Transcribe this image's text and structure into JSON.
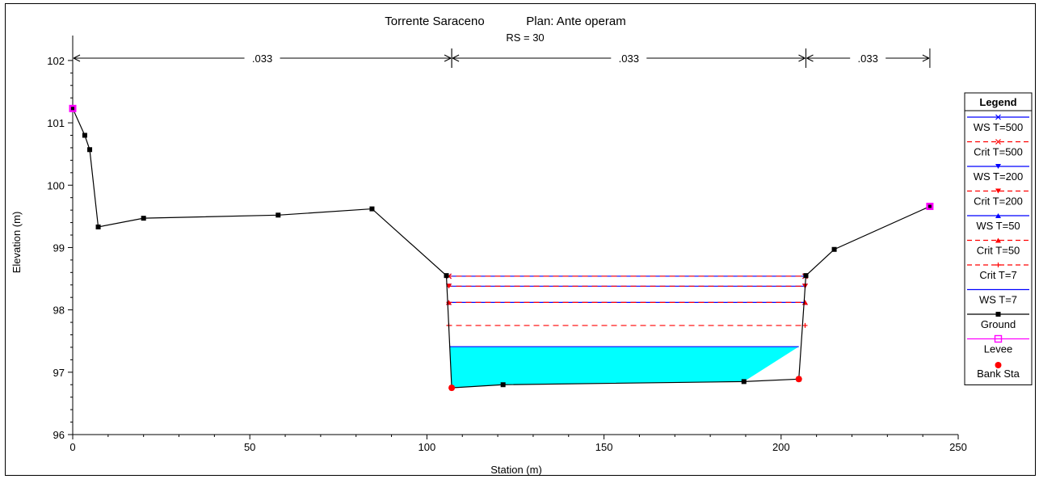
{
  "chart_data": {
    "type": "line",
    "title": "Torrente Saraceno",
    "plan": "Plan: Ante operam",
    "subtitle": "RS = 30",
    "xlabel": "Station (m)",
    "ylabel": "Elevation (m)",
    "xlim": [
      0,
      250
    ],
    "ylim": [
      96,
      102.4
    ],
    "x_ticks": [
      "0",
      "50",
      "100",
      "150",
      "200",
      "250"
    ],
    "x_tick_values": [
      0,
      50,
      100,
      150,
      200,
      250
    ],
    "y_ticks": [
      "96",
      "97",
      "98",
      "99",
      "100",
      "101",
      "102"
    ],
    "y_tick_values": [
      96,
      97,
      98,
      99,
      100,
      101,
      102
    ],
    "mannings": [
      {
        "label": ".033",
        "from": 0,
        "to": 107
      },
      {
        "label": ".033",
        "from": 107,
        "to": 207
      },
      {
        "label": ".033",
        "from": 207,
        "to": 242
      }
    ],
    "ground": {
      "x": [
        0,
        3.4,
        4.8,
        7.2,
        20,
        58,
        84.5,
        105.5,
        107,
        121.5,
        189.5,
        205,
        207,
        215,
        242
      ],
      "y": [
        101.23,
        100.8,
        100.57,
        99.33,
        99.47,
        99.52,
        99.62,
        98.55,
        96.75,
        96.8,
        96.85,
        96.89,
        98.55,
        98.97,
        99.66
      ]
    },
    "levees": [
      {
        "x": 0,
        "y": 101.23
      },
      {
        "x": 242,
        "y": 99.66
      }
    ],
    "bank_stations": [
      {
        "x": 107,
        "y": 96.75
      },
      {
        "x": 205,
        "y": 96.89
      }
    ],
    "water_surfaces": [
      {
        "name": "WS T=500",
        "elevation": 98.54,
        "left": 105.5,
        "right": 207,
        "color": "#0000ff",
        "dashed": false,
        "marker": "x"
      },
      {
        "name": "Crit T=500",
        "elevation": 98.54,
        "left": 105.5,
        "right": 207,
        "color": "#ff0000",
        "dashed": true,
        "marker": "x"
      },
      {
        "name": "WS T=200",
        "elevation": 98.38,
        "left": 105.5,
        "right": 207,
        "color": "#0000ff",
        "dashed": false,
        "marker": "tri-down"
      },
      {
        "name": "Crit T=200",
        "elevation": 98.38,
        "left": 105.5,
        "right": 207,
        "color": "#ff0000",
        "dashed": true,
        "marker": "tri-down"
      },
      {
        "name": "WS T=50",
        "elevation": 98.12,
        "left": 105.5,
        "right": 207,
        "color": "#0000ff",
        "dashed": false,
        "marker": "tri-up"
      },
      {
        "name": "Crit T=50",
        "elevation": 98.12,
        "left": 105.5,
        "right": 207,
        "color": "#ff0000",
        "dashed": true,
        "marker": "tri-up"
      },
      {
        "name": "Crit T=7",
        "elevation": 97.75,
        "left": 105.5,
        "right": 207,
        "color": "#ff0000",
        "dashed": true,
        "marker": "plus"
      },
      {
        "name": "WS T=7",
        "elevation": 97.41,
        "left": 106.5,
        "right": 205,
        "color": "#0000ff",
        "dashed": false,
        "marker": "none"
      }
    ],
    "fill_color": "#00ffff",
    "legend": {
      "title": "Legend",
      "placement": "right",
      "entries": [
        {
          "label": "WS T=500",
          "color": "#0000ff",
          "dashed": false,
          "marker": "x"
        },
        {
          "label": "Crit T=500",
          "color": "#ff0000",
          "dashed": true,
          "marker": "x"
        },
        {
          "label": "WS T=200",
          "color": "#0000ff",
          "dashed": false,
          "marker": "tri-down"
        },
        {
          "label": "Crit T=200",
          "color": "#ff0000",
          "dashed": true,
          "marker": "tri-down"
        },
        {
          "label": "WS T=50",
          "color": "#0000ff",
          "dashed": false,
          "marker": "tri-up"
        },
        {
          "label": "Crit T=50",
          "color": "#ff0000",
          "dashed": true,
          "marker": "tri-up"
        },
        {
          "label": "Crit T=7",
          "color": "#ff0000",
          "dashed": true,
          "marker": "plus"
        },
        {
          "label": "WS T=7",
          "color": "#0000ff",
          "dashed": false,
          "marker": "none"
        },
        {
          "label": "Ground",
          "color": "#000000",
          "dashed": false,
          "marker": "square"
        },
        {
          "label": "Levee",
          "color": "#ff00ff",
          "dashed": false,
          "marker": "open-square"
        },
        {
          "label": "Bank Sta",
          "color": "#ff0000",
          "dashed": false,
          "marker": "dot"
        }
      ]
    }
  }
}
